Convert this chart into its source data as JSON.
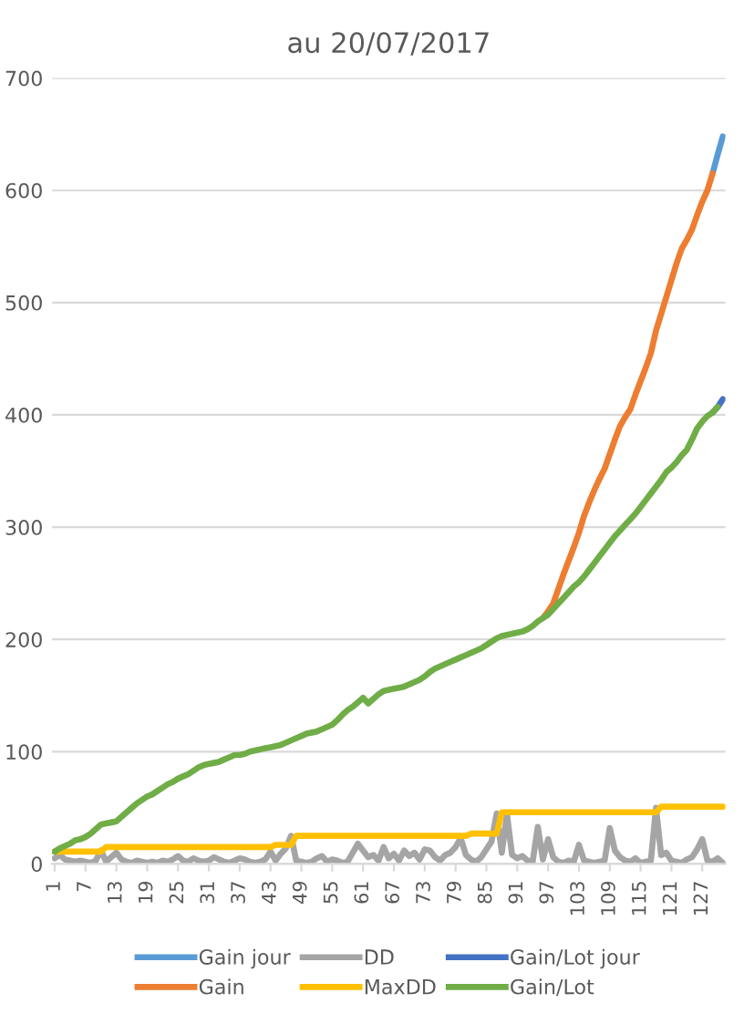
{
  "chart_data": {
    "type": "line",
    "title": "au 20/07/2017",
    "categories": [
      "1",
      null,
      null,
      null,
      null,
      null,
      "7",
      null,
      null,
      null,
      null,
      null,
      "13",
      null,
      null,
      null,
      null,
      null,
      "19",
      null,
      null,
      null,
      null,
      null,
      "25",
      null,
      null,
      null,
      null,
      null,
      "31",
      null,
      null,
      null,
      null,
      null,
      "37",
      null,
      null,
      null,
      null,
      null,
      "43",
      null,
      null,
      null,
      null,
      null,
      "49",
      null,
      null,
      null,
      null,
      null,
      "55",
      null,
      null,
      null,
      null,
      null,
      "61",
      null,
      null,
      null,
      null,
      null,
      "67",
      null,
      null,
      null,
      null,
      null,
      "73",
      null,
      null,
      null,
      null,
      null,
      "79",
      null,
      null,
      null,
      null,
      null,
      "85",
      null,
      null,
      null,
      null,
      null,
      "91",
      null,
      null,
      null,
      null,
      null,
      "97",
      null,
      null,
      null,
      null,
      null,
      "103",
      null,
      null,
      null,
      null,
      null,
      "109",
      null,
      null,
      null,
      null,
      null,
      "115",
      null,
      null,
      null,
      null,
      null,
      "121",
      null,
      null,
      null,
      null,
      null,
      "127",
      null,
      null,
      null,
      null
    ],
    "series": [
      {
        "name": "Gain jour",
        "color": "#5b9bd5",
        "values": [
          null,
          null,
          null,
          null,
          null,
          null,
          null,
          null,
          null,
          null,
          null,
          null,
          null,
          null,
          null,
          null,
          null,
          null,
          null,
          null,
          null,
          null,
          null,
          null,
          null,
          null,
          null,
          null,
          null,
          null,
          null,
          null,
          null,
          null,
          null,
          null,
          null,
          null,
          null,
          null,
          null,
          null,
          null,
          null,
          null,
          null,
          null,
          null,
          null,
          null,
          null,
          null,
          null,
          null,
          null,
          null,
          null,
          null,
          null,
          null,
          null,
          null,
          null,
          null,
          null,
          null,
          null,
          null,
          null,
          null,
          null,
          null,
          null,
          null,
          null,
          null,
          null,
          null,
          null,
          null,
          null,
          null,
          null,
          null,
          null,
          null,
          null,
          null,
          null,
          null,
          null,
          null,
          null,
          null,
          null,
          null,
          null,
          null,
          null,
          null,
          null,
          null,
          null,
          null,
          null,
          null,
          null,
          null,
          null,
          null,
          null,
          null,
          null,
          null,
          null,
          null,
          null,
          null,
          null,
          null,
          null,
          null,
          null,
          null,
          null,
          null,
          null,
          null,
          615,
          632,
          648
        ]
      },
      {
        "name": "Gain",
        "color": "#ed7d31",
        "values": [
          null,
          null,
          null,
          null,
          null,
          null,
          null,
          null,
          null,
          null,
          null,
          null,
          null,
          null,
          null,
          null,
          null,
          null,
          null,
          null,
          null,
          null,
          null,
          null,
          null,
          null,
          null,
          null,
          null,
          null,
          null,
          null,
          null,
          null,
          null,
          null,
          null,
          null,
          null,
          null,
          null,
          null,
          null,
          null,
          null,
          null,
          null,
          null,
          null,
          null,
          null,
          null,
          null,
          null,
          null,
          null,
          null,
          null,
          null,
          null,
          null,
          null,
          null,
          null,
          null,
          null,
          null,
          null,
          null,
          null,
          null,
          null,
          null,
          null,
          null,
          null,
          null,
          null,
          null,
          null,
          null,
          null,
          null,
          null,
          null,
          null,
          null,
          null,
          null,
          null,
          null,
          null,
          null,
          null,
          null,
          219,
          225,
          232,
          245,
          258,
          270,
          282,
          295,
          310,
          322,
          333,
          343,
          352,
          365,
          378,
          390,
          398,
          405,
          418,
          430,
          442,
          455,
          475,
          490,
          505,
          520,
          535,
          548,
          556,
          565,
          578,
          590,
          600,
          615,
          null,
          null
        ]
      },
      {
        "name": "DD",
        "color": "#a5a5a5",
        "values": [
          5,
          8,
          4,
          3,
          2,
          3,
          2,
          1,
          3,
          12,
          2,
          6,
          10,
          4,
          2,
          1,
          3,
          2,
          1,
          2,
          1,
          3,
          2,
          4,
          7,
          3,
          2,
          5,
          3,
          2,
          3,
          6,
          4,
          2,
          1,
          3,
          5,
          4,
          2,
          1,
          2,
          4,
          11,
          3,
          9,
          14,
          25,
          3,
          2,
          1,
          2,
          5,
          7,
          2,
          4,
          3,
          1,
          2,
          10,
          18,
          12,
          6,
          8,
          3,
          15,
          5,
          9,
          3,
          12,
          7,
          10,
          4,
          13,
          12,
          6,
          3,
          8,
          10,
          15,
          23,
          8,
          4,
          2,
          6,
          13,
          20,
          45,
          10,
          44,
          8,
          5,
          7,
          3,
          2,
          33,
          4,
          22,
          6,
          2,
          1,
          3,
          2,
          17,
          3,
          2,
          1,
          2,
          3,
          32,
          12,
          6,
          3,
          2,
          5,
          1,
          2,
          3,
          50,
          8,
          10,
          3,
          2,
          1,
          4,
          6,
          13,
          22,
          3,
          2,
          5,
          1
        ]
      },
      {
        "name": "MaxDD",
        "color": "#ffc000",
        "values": [
          11,
          11,
          11,
          11,
          11,
          11,
          11,
          11,
          11,
          11,
          15,
          15,
          15,
          15,
          15,
          15,
          15,
          15,
          15,
          15,
          15,
          15,
          15,
          15,
          15,
          15,
          15,
          15,
          15,
          15,
          15,
          15,
          15,
          15,
          15,
          15,
          15,
          15,
          15,
          15,
          15,
          15,
          15,
          17,
          17,
          17,
          17,
          25,
          25,
          25,
          25,
          25,
          25,
          25,
          25,
          25,
          25,
          25,
          25,
          25,
          25,
          25,
          25,
          25,
          25,
          25,
          25,
          25,
          25,
          25,
          25,
          25,
          25,
          25,
          25,
          25,
          25,
          25,
          25,
          25,
          25,
          27,
          27,
          27,
          27,
          27,
          27,
          46,
          46,
          46,
          46,
          46,
          46,
          46,
          46,
          46,
          46,
          46,
          46,
          46,
          46,
          46,
          46,
          46,
          46,
          46,
          46,
          46,
          46,
          46,
          46,
          46,
          46,
          46,
          46,
          46,
          46,
          46,
          51,
          51,
          51,
          51,
          51,
          51,
          51,
          51,
          51,
          51,
          51,
          51,
          51
        ]
      },
      {
        "name": "Gain/Lot jour",
        "color": "#4472c4",
        "values": [
          null,
          null,
          null,
          null,
          null,
          null,
          null,
          null,
          null,
          null,
          null,
          null,
          null,
          null,
          null,
          null,
          null,
          null,
          null,
          null,
          null,
          null,
          null,
          null,
          null,
          null,
          null,
          null,
          null,
          null,
          null,
          null,
          null,
          null,
          null,
          null,
          null,
          null,
          null,
          null,
          null,
          null,
          null,
          null,
          null,
          null,
          null,
          null,
          null,
          null,
          null,
          null,
          null,
          null,
          null,
          null,
          null,
          null,
          null,
          null,
          null,
          null,
          null,
          null,
          null,
          null,
          null,
          null,
          null,
          null,
          null,
          null,
          null,
          null,
          null,
          null,
          null,
          null,
          null,
          null,
          null,
          null,
          null,
          null,
          null,
          null,
          null,
          null,
          null,
          null,
          null,
          null,
          null,
          null,
          null,
          null,
          null,
          null,
          null,
          null,
          null,
          null,
          null,
          null,
          null,
          null,
          null,
          null,
          null,
          null,
          null,
          null,
          null,
          null,
          null,
          null,
          null,
          null,
          null,
          null,
          null,
          null,
          null,
          null,
          null,
          null,
          null,
          null,
          402,
          407,
          414
        ]
      },
      {
        "name": "Gain/Lot",
        "color": "#70ad47",
        "values": [
          11,
          14,
          16,
          18,
          21,
          22,
          24,
          27,
          31,
          35,
          36,
          37,
          38,
          42,
          46,
          50,
          54,
          57,
          60,
          62,
          65,
          68,
          71,
          73,
          76,
          78,
          80,
          83,
          86,
          88,
          89,
          90,
          91,
          93,
          95,
          97,
          97,
          98,
          100,
          101,
          102,
          103,
          104,
          105,
          106,
          108,
          110,
          112,
          114,
          116,
          117,
          118,
          120,
          122,
          124,
          128,
          133,
          137,
          140,
          144,
          148,
          143,
          147,
          151,
          154,
          155,
          156,
          157,
          158,
          160,
          162,
          164,
          167,
          171,
          174,
          176,
          178,
          180,
          182,
          184,
          186,
          188,
          190,
          192,
          195,
          198,
          201,
          203,
          204,
          205,
          206,
          207,
          209,
          212,
          216,
          219,
          222,
          227,
          232,
          237,
          242,
          247,
          251,
          256,
          262,
          268,
          274,
          280,
          286,
          292,
          297,
          302,
          307,
          312,
          318,
          324,
          330,
          336,
          342,
          349,
          353,
          358,
          364,
          369,
          378,
          388,
          394,
          399,
          402,
          407,
          null
        ]
      }
    ],
    "ylim": [
      0,
      700
    ],
    "yticks": [
      0,
      100,
      200,
      300,
      400,
      500,
      600,
      700
    ],
    "grid": "y",
    "legend": "bottom",
    "marker": "none",
    "line_style": "solid"
  }
}
